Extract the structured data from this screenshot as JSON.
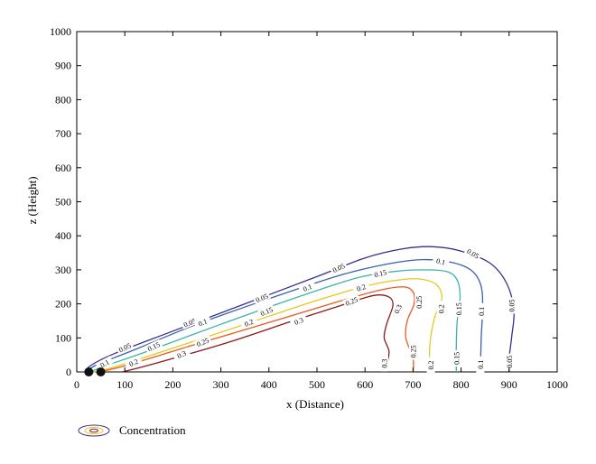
{
  "chart_data": {
    "type": "contour",
    "xlabel": "x (Distance)",
    "ylabel": "z (Height)",
    "xlim": [
      0,
      1000
    ],
    "ylim": [
      0,
      1000
    ],
    "xticks": [
      "0",
      "100",
      "200",
      "300",
      "400",
      "500",
      "600",
      "700",
      "800",
      "900",
      "1000"
    ],
    "yticks": [
      "0",
      "100",
      "200",
      "300",
      "400",
      "500",
      "600",
      "700",
      "800",
      "900",
      "1000"
    ],
    "legend": "Concentration",
    "sources": [
      [
        25,
        0
      ],
      [
        50,
        0
      ]
    ],
    "contours": [
      {
        "level": "0.05",
        "color": "#3b2d8f",
        "points": [
          [
            18,
            0
          ],
          [
            30,
            20
          ],
          [
            80,
            55
          ],
          [
            200,
            120
          ],
          [
            350,
            200
          ],
          [
            500,
            280
          ],
          [
            600,
            335
          ],
          [
            680,
            362
          ],
          [
            740,
            368
          ],
          [
            800,
            355
          ],
          [
            860,
            320
          ],
          [
            895,
            260
          ],
          [
            910,
            180
          ],
          [
            905,
            100
          ],
          [
            900,
            40
          ],
          [
            900,
            0
          ]
        ],
        "labels": [
          {
            "text": "0.05",
            "at": [
              100,
              72
            ],
            "angle": -25
          },
          {
            "text": "0.05",
            "at": [
              235,
              145
            ],
            "angle": -22
          },
          {
            "text": "0.05",
            "at": [
              385,
              218
            ],
            "angle": -22
          },
          {
            "text": "0.05",
            "at": [
              545,
              306
            ],
            "angle": -25
          },
          {
            "text": "0.05",
            "at": [
              825,
              348
            ],
            "angle": 30
          },
          {
            "text": "0.05",
            "at": [
              905,
              195
            ],
            "angle": -90
          },
          {
            "text": "0.05",
            "at": [
              900,
              30
            ],
            "angle": -90
          }
        ]
      },
      {
        "level": "0.1",
        "color": "#3a60b0",
        "points": [
          [
            22,
            0
          ],
          [
            40,
            20
          ],
          [
            120,
            65
          ],
          [
            250,
            140
          ],
          [
            400,
            215
          ],
          [
            550,
            285
          ],
          [
            650,
            318
          ],
          [
            720,
            330
          ],
          [
            780,
            322
          ],
          [
            820,
            300
          ],
          [
            840,
            260
          ],
          [
            845,
            200
          ],
          [
            842,
            100
          ],
          [
            840,
            0
          ]
        ],
        "labels": [
          {
            "text": "0.1",
            "at": [
              58,
              25
            ],
            "angle": -30
          },
          {
            "text": "0.1",
            "at": [
              262,
              146
            ],
            "angle": -22
          },
          {
            "text": "0.1",
            "at": [
              480,
              248
            ],
            "angle": -22
          },
          {
            "text": "0.1",
            "at": [
              758,
              325
            ],
            "angle": 15
          },
          {
            "text": "0.1",
            "at": [
              842,
              178
            ],
            "angle": -90
          },
          {
            "text": "0.1",
            "at": [
              840,
              22
            ],
            "angle": -90
          }
        ]
      },
      {
        "level": "0.15",
        "color": "#3db3a8",
        "points": [
          [
            28,
            0
          ],
          [
            60,
            18
          ],
          [
            150,
            62
          ],
          [
            300,
            140
          ],
          [
            450,
            215
          ],
          [
            580,
            275
          ],
          [
            660,
            295
          ],
          [
            720,
            300
          ],
          [
            770,
            295
          ],
          [
            792,
            270
          ],
          [
            798,
            220
          ],
          [
            792,
            150
          ],
          [
            790,
            80
          ],
          [
            790,
            0
          ]
        ],
        "labels": [
          {
            "text": "0.15",
            "at": [
              160,
              75
            ],
            "angle": -25
          },
          {
            "text": "0.15",
            "at": [
              395,
              178
            ],
            "angle": -22
          },
          {
            "text": "0.15",
            "at": [
              632,
              290
            ],
            "angle": -15
          },
          {
            "text": "0.15",
            "at": [
              795,
              185
            ],
            "angle": -90
          },
          {
            "text": "0.15",
            "at": [
              790,
              40
            ],
            "angle": -90
          }
        ]
      },
      {
        "level": "0.2",
        "color": "#e6c820",
        "points": [
          [
            35,
            0
          ],
          [
            80,
            15
          ],
          [
            200,
            70
          ],
          [
            350,
            140
          ],
          [
            500,
            210
          ],
          [
            610,
            255
          ],
          [
            680,
            272
          ],
          [
            720,
            272
          ],
          [
            750,
            255
          ],
          [
            760,
            215
          ],
          [
            745,
            160
          ],
          [
            735,
            80
          ],
          [
            735,
            0
          ]
        ],
        "labels": [
          {
            "text": "0.2",
            "at": [
              118,
              28
            ],
            "angle": -25
          },
          {
            "text": "0.2",
            "at": [
              358,
              145
            ],
            "angle": -22
          },
          {
            "text": "0.2",
            "at": [
              592,
              248
            ],
            "angle": -20
          },
          {
            "text": "0.2",
            "at": [
              758,
              185
            ],
            "angle": -90
          },
          {
            "text": "0.2",
            "at": [
              737,
              20
            ],
            "angle": -90
          }
        ]
      },
      {
        "level": "0.25",
        "color": "#e85a1f",
        "points": [
          [
            45,
            0
          ],
          [
            100,
            18
          ],
          [
            240,
            78
          ],
          [
            400,
            145
          ],
          [
            540,
            205
          ],
          [
            630,
            240
          ],
          [
            680,
            250
          ],
          [
            700,
            235
          ],
          [
            702,
            200
          ],
          [
            688,
            150
          ],
          [
            685,
            100
          ],
          [
            700,
            40
          ],
          [
            700,
            0
          ]
        ],
        "labels": [
          {
            "text": "0.25",
            "at": [
              262,
              88
            ],
            "angle": -22
          },
          {
            "text": "0.25",
            "at": [
              572,
              208
            ],
            "angle": -22
          },
          {
            "text": "0.25",
            "at": [
              712,
              205
            ],
            "angle": -90
          },
          {
            "text": "0.25",
            "at": [
              700,
              60
            ],
            "angle": -90
          }
        ]
      },
      {
        "level": "0.3",
        "color": "#8b1a1a",
        "points": [
          [
            95,
            0
          ],
          [
            150,
            20
          ],
          [
            300,
            80
          ],
          [
            450,
            150
          ],
          [
            560,
            200
          ],
          [
            620,
            225
          ],
          [
            650,
            220
          ],
          [
            658,
            195
          ],
          [
            645,
            140
          ],
          [
            640,
            100
          ],
          [
            650,
            60
          ],
          [
            645,
            20
          ],
          [
            642,
            0
          ]
        ],
        "labels": [
          {
            "text": "0.3",
            "at": [
              218,
              52
            ],
            "angle": -25
          },
          {
            "text": "0.3",
            "at": [
              462,
              150
            ],
            "angle": -22
          },
          {
            "text": "0.3",
            "at": [
              668,
              185
            ],
            "angle": -65
          },
          {
            "text": "0.3",
            "at": [
              640,
              25
            ],
            "angle": -90
          }
        ]
      }
    ]
  }
}
